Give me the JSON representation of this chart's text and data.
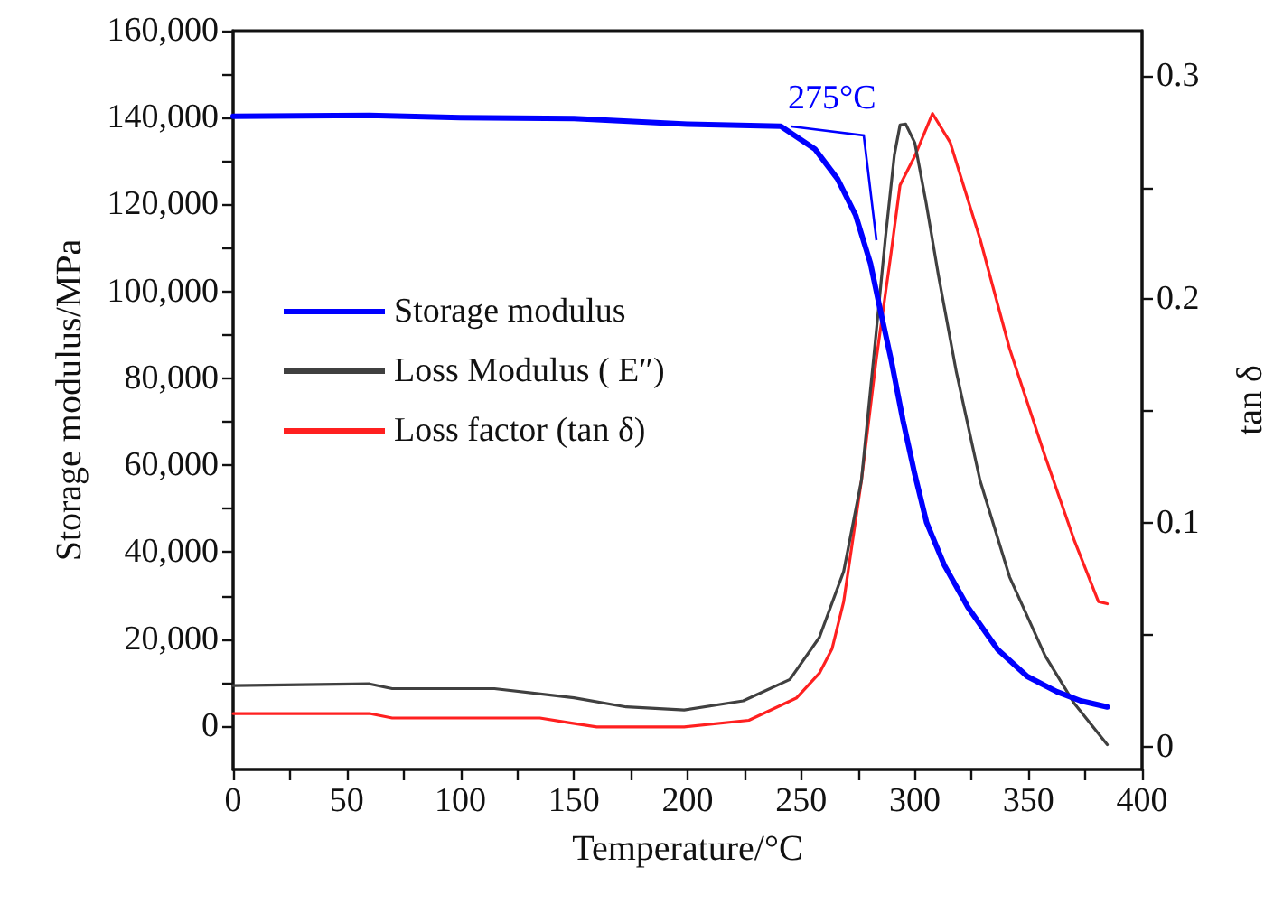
{
  "chart_data": {
    "type": "line",
    "xlabel": "Temperature/°C",
    "ylabel": "Storage modulus/MPa",
    "y2label": "tan δ",
    "xlim": [
      0,
      400
    ],
    "xticks": [
      0,
      {
        "value": 25,
        "label": null
      },
      50,
      {
        "value": 75,
        "label": null
      },
      100,
      {
        "value": 125,
        "label": null
      },
      150,
      {
        "value": 175,
        "label": null
      },
      200,
      {
        "value": 225,
        "label": null
      },
      250,
      {
        "value": 275,
        "label": null
      },
      300,
      {
        "value": 325,
        "label": null
      },
      350,
      {
        "value": 375,
        "label": null
      },
      400
    ],
    "ylim": [
      -10000,
      160000
    ],
    "yticks": [
      0,
      {
        "value": 10000,
        "label": null
      },
      {
        "value": 20000,
        "label": "20,000"
      },
      {
        "value": 30000,
        "label": null
      },
      {
        "value": 40000,
        "label": "40,000"
      },
      {
        "value": 50000,
        "label": null
      },
      {
        "value": 60000,
        "label": "60,000"
      },
      {
        "value": 70000,
        "label": null
      },
      {
        "value": 80000,
        "label": "80,000"
      },
      {
        "value": 90000,
        "label": null
      },
      {
        "value": 100000,
        "label": "100,000"
      },
      {
        "value": 110000,
        "label": null
      },
      {
        "value": 120000,
        "label": "120,000"
      },
      {
        "value": 130000,
        "label": null
      },
      {
        "value": 140000,
        "label": "140,000"
      },
      {
        "value": 150000,
        "label": null
      },
      {
        "value": 160000,
        "label": "160,000"
      }
    ],
    "y2lim": [
      -0.01,
      0.32
    ],
    "y2ticks": [
      0.0,
      {
        "value": 0.05,
        "label": null
      },
      0.1,
      {
        "value": 0.15,
        "label": null
      },
      0.2,
      {
        "value": 0.25,
        "label": null
      },
      0.3
    ],
    "grid": false,
    "legend": "left",
    "marker": "none",
    "line_style": "solid",
    "annotations": [
      "275°C"
    ],
    "series": [
      {
        "name": "Storage modulus",
        "color": "#0000ff",
        "x": [
          0,
          60,
          100,
          150,
          200,
          241,
          256,
          266,
          274,
          280.5,
          284.4,
          289.6,
          294.8,
          300,
          305.2,
          313,
          323.4,
          336.5,
          349.5,
          362.5,
          373,
          384.7
        ],
        "values": [
          140300,
          140500,
          140000,
          139800,
          138500,
          138000,
          132800,
          125900,
          117500,
          106400,
          96700,
          84200,
          70300,
          57900,
          46800,
          37000,
          27300,
          17600,
          11400,
          7900,
          5800,
          4400
        ]
      },
      {
        "name": "Loss Modulus ( E″)",
        "color": "#404040",
        "x": [
          0,
          60,
          70,
          115,
          150,
          173,
          198.5,
          224.5,
          245,
          258,
          268.7,
          276.5,
          281.8,
          287,
          291,
          293.5,
          296,
          300,
          305,
          310.4,
          318.3,
          328.7,
          341.7,
          357.3,
          370.3,
          384.7
        ],
        "values": [
          9300,
          9700,
          8600,
          8600,
          6500,
          4400,
          3700,
          5800,
          10700,
          20400,
          35600,
          56500,
          84200,
          112000,
          131400,
          138300,
          138500,
          134200,
          120300,
          103700,
          81400,
          56500,
          34300,
          16200,
          5100,
          -4300
        ]
      },
      {
        "name": "Loss factor (tan δ)",
        "color": "#ff2020",
        "axis": "y2",
        "x": [
          0,
          60,
          70,
          135,
          147,
          160,
          178,
          198.5,
          227,
          248,
          258,
          263.6,
          268.7,
          276.5,
          283,
          289.6,
          293.5,
          300,
          307.8,
          315.6,
          328.7,
          341.7,
          357.3,
          370.3,
          380.8,
          384.7
        ],
        "values": [
          0.015,
          0.015,
          0.013,
          0.013,
          0.011,
          0.009,
          0.009,
          0.009,
          0.012,
          0.022,
          0.033,
          0.044,
          0.065,
          0.119,
          0.173,
          0.221,
          0.251,
          0.264,
          0.283,
          0.27,
          0.227,
          0.178,
          0.13,
          0.092,
          0.065,
          0.064
        ]
      }
    ]
  }
}
